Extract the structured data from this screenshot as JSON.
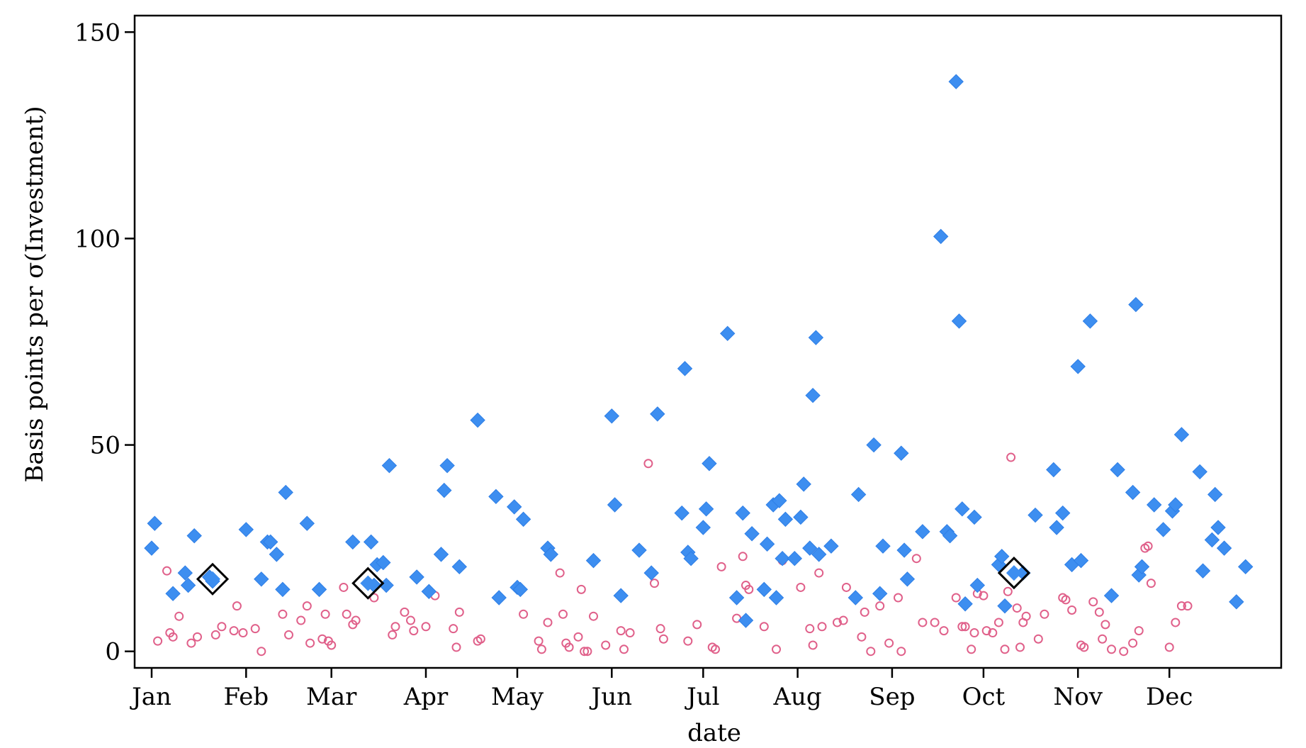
{
  "chart_data": {
    "type": "scatter",
    "title": "",
    "xlabel": "date",
    "ylabel": "Basis points per σ(Investment)",
    "x_ticks": [
      "Jan",
      "Feb",
      "Mar",
      "Apr",
      "May",
      "Jun",
      "Jul",
      "Aug",
      "Sep",
      "Oct",
      "Nov",
      "Dec"
    ],
    "y_ticks": [
      0,
      50,
      100,
      150
    ],
    "ylim": [
      -4,
      154
    ],
    "grid": false,
    "legend": "none",
    "series": [
      {
        "marker": "diamond",
        "color": "#3d8ef0",
        "points": [
          [
            "01-01",
            25
          ],
          [
            "01-02",
            31
          ],
          [
            "01-08",
            14
          ],
          [
            "01-12",
            19
          ],
          [
            "01-13",
            16
          ],
          [
            "01-15",
            28
          ],
          [
            "01-20",
            18
          ],
          [
            "01-21",
            17
          ],
          [
            "02-01",
            29.5
          ],
          [
            "02-06",
            17.5
          ],
          [
            "02-08",
            26.5
          ],
          [
            "02-09",
            26.5
          ],
          [
            "02-11",
            23.5
          ],
          [
            "02-13",
            15
          ],
          [
            "02-14",
            38.5
          ],
          [
            "02-21",
            31
          ],
          [
            "02-25",
            15
          ],
          [
            "03-08",
            26.5
          ],
          [
            "03-14",
            26.5
          ],
          [
            "03-15",
            16
          ],
          [
            "03-16",
            21
          ],
          [
            "03-18",
            21.5
          ],
          [
            "03-19",
            16
          ],
          [
            "03-20",
            45
          ],
          [
            "03-29",
            18
          ],
          [
            "04-02",
            14.5
          ],
          [
            "04-06",
            23.5
          ],
          [
            "04-07",
            39
          ],
          [
            "04-08",
            45
          ],
          [
            "04-12",
            20.5
          ],
          [
            "04-18",
            56
          ],
          [
            "04-24",
            37.5
          ],
          [
            "04-25",
            13
          ],
          [
            "04-30",
            35
          ],
          [
            "05-01",
            15.5
          ],
          [
            "05-02",
            15
          ],
          [
            "05-03",
            32
          ],
          [
            "05-11",
            25
          ],
          [
            "05-12",
            23.5
          ],
          [
            "05-26",
            22
          ],
          [
            "06-01",
            57
          ],
          [
            "06-02",
            35.5
          ],
          [
            "06-04",
            13.5
          ],
          [
            "06-10",
            24.5
          ],
          [
            "06-14",
            19
          ],
          [
            "06-16",
            57.5
          ],
          [
            "06-24",
            33.5
          ],
          [
            "06-25",
            68.5
          ],
          [
            "06-26",
            24
          ],
          [
            "06-27",
            22.5
          ],
          [
            "07-01",
            30
          ],
          [
            "07-02",
            34.5
          ],
          [
            "07-03",
            45.5
          ],
          [
            "07-09",
            77
          ],
          [
            "07-12",
            13
          ],
          [
            "07-14",
            33.5
          ],
          [
            "07-15",
            7.5
          ],
          [
            "07-17",
            28.5
          ],
          [
            "07-21",
            15
          ],
          [
            "07-22",
            26
          ],
          [
            "07-24",
            35.5
          ],
          [
            "07-25",
            13
          ],
          [
            "07-26",
            36.5
          ],
          [
            "07-27",
            22.5
          ],
          [
            "07-28",
            32
          ],
          [
            "07-31",
            22.5
          ],
          [
            "08-02",
            32.5
          ],
          [
            "08-03",
            40.5
          ],
          [
            "08-05",
            25
          ],
          [
            "08-06",
            62
          ],
          [
            "08-07",
            76
          ],
          [
            "08-08",
            23.5
          ],
          [
            "08-12",
            25.5
          ],
          [
            "08-20",
            13
          ],
          [
            "08-21",
            38
          ],
          [
            "08-26",
            50
          ],
          [
            "08-28",
            14
          ],
          [
            "08-29",
            25.5
          ],
          [
            "09-04",
            48
          ],
          [
            "09-05",
            24.5
          ],
          [
            "09-06",
            17.5
          ],
          [
            "09-11",
            29
          ],
          [
            "09-17",
            100.5
          ],
          [
            "09-19",
            29
          ],
          [
            "09-20",
            28
          ],
          [
            "09-22",
            138
          ],
          [
            "09-23",
            80
          ],
          [
            "09-24",
            34.5
          ],
          [
            "09-25",
            11.5
          ],
          [
            "09-28",
            32.5
          ],
          [
            "09-29",
            16
          ],
          [
            "10-06",
            21
          ],
          [
            "10-07",
            23
          ],
          [
            "10-08",
            11
          ],
          [
            "10-14",
            19
          ],
          [
            "10-18",
            33
          ],
          [
            "10-24",
            44
          ],
          [
            "10-25",
            30
          ],
          [
            "10-27",
            33.5
          ],
          [
            "10-30",
            21
          ],
          [
            "11-01",
            69
          ],
          [
            "11-02",
            22
          ],
          [
            "11-05",
            80
          ],
          [
            "11-12",
            13.5
          ],
          [
            "11-14",
            44
          ],
          [
            "11-19",
            38.5
          ],
          [
            "11-20",
            84
          ],
          [
            "11-21",
            18.5
          ],
          [
            "11-22",
            20.5
          ],
          [
            "11-26",
            35.5
          ],
          [
            "11-29",
            29.5
          ],
          [
            "12-02",
            34
          ],
          [
            "12-03",
            35.5
          ],
          [
            "12-05",
            52.5
          ],
          [
            "12-11",
            43.5
          ],
          [
            "12-12",
            19.5
          ],
          [
            "12-15",
            27
          ],
          [
            "12-16",
            38
          ],
          [
            "12-17",
            30
          ],
          [
            "12-19",
            25
          ],
          [
            "12-23",
            12
          ],
          [
            "12-26",
            20.5
          ]
        ]
      },
      {
        "marker": "open circle",
        "color": "#e0608a",
        "points": [
          [
            "01-03",
            2.5
          ],
          [
            "01-06",
            19.5
          ],
          [
            "01-07",
            4.5
          ],
          [
            "01-08",
            3.5
          ],
          [
            "01-10",
            8.5
          ],
          [
            "01-14",
            2
          ],
          [
            "01-16",
            3.5
          ],
          [
            "01-22",
            4
          ],
          [
            "01-24",
            6
          ],
          [
            "01-28",
            5
          ],
          [
            "01-29",
            11
          ],
          [
            "01-31",
            4.5
          ],
          [
            "02-04",
            5.5
          ],
          [
            "02-06",
            0
          ],
          [
            "02-13",
            9
          ],
          [
            "02-15",
            4
          ],
          [
            "02-19",
            7.5
          ],
          [
            "02-21",
            11
          ],
          [
            "02-22",
            2
          ],
          [
            "02-26",
            3
          ],
          [
            "02-27",
            9
          ],
          [
            "02-28",
            2.5
          ],
          [
            "03-01",
            1.5
          ],
          [
            "03-05",
            15.5
          ],
          [
            "03-06",
            9
          ],
          [
            "03-08",
            6.5
          ],
          [
            "03-09",
            7.5
          ],
          [
            "03-15",
            13
          ],
          [
            "03-21",
            4
          ],
          [
            "03-22",
            6
          ],
          [
            "03-25",
            9.5
          ],
          [
            "03-27",
            7.5
          ],
          [
            "03-28",
            5
          ],
          [
            "04-01",
            6
          ],
          [
            "04-04",
            13.5
          ],
          [
            "04-10",
            5.5
          ],
          [
            "04-11",
            1
          ],
          [
            "04-12",
            9.5
          ],
          [
            "04-18",
            2.5
          ],
          [
            "04-19",
            3
          ],
          [
            "05-03",
            9
          ],
          [
            "05-08",
            2.5
          ],
          [
            "05-09",
            0.5
          ],
          [
            "05-11",
            7
          ],
          [
            "05-15",
            19
          ],
          [
            "05-16",
            9
          ],
          [
            "05-17",
            2
          ],
          [
            "05-18",
            1
          ],
          [
            "05-21",
            3.5
          ],
          [
            "05-22",
            15
          ],
          [
            "05-23",
            0
          ],
          [
            "05-24",
            0
          ],
          [
            "05-26",
            8.5
          ],
          [
            "05-30",
            1.5
          ],
          [
            "06-04",
            5
          ],
          [
            "06-05",
            0.5
          ],
          [
            "06-07",
            4.5
          ],
          [
            "06-13",
            45.5
          ],
          [
            "06-15",
            16.5
          ],
          [
            "06-17",
            5.5
          ],
          [
            "06-18",
            3
          ],
          [
            "06-26",
            2.5
          ],
          [
            "06-29",
            6.5
          ],
          [
            "07-04",
            1
          ],
          [
            "07-05",
            0.5
          ],
          [
            "07-07",
            20.5
          ],
          [
            "07-12",
            8
          ],
          [
            "07-14",
            23
          ],
          [
            "07-15",
            16
          ],
          [
            "07-16",
            15
          ],
          [
            "07-21",
            6
          ],
          [
            "07-25",
            0.5
          ],
          [
            "07-27",
            22
          ],
          [
            "08-02",
            15.5
          ],
          [
            "08-05",
            5.5
          ],
          [
            "08-06",
            1.5
          ],
          [
            "08-08",
            19
          ],
          [
            "08-09",
            6
          ],
          [
            "08-14",
            7
          ],
          [
            "08-16",
            7.5
          ],
          [
            "08-17",
            15.5
          ],
          [
            "08-22",
            3.5
          ],
          [
            "08-23",
            9.5
          ],
          [
            "08-25",
            0
          ],
          [
            "08-28",
            11
          ],
          [
            "08-31",
            2
          ],
          [
            "09-03",
            13
          ],
          [
            "09-04",
            0
          ],
          [
            "09-09",
            22.5
          ],
          [
            "09-11",
            7
          ],
          [
            "09-15",
            7
          ],
          [
            "09-18",
            5
          ],
          [
            "09-22",
            13
          ],
          [
            "09-24",
            6
          ],
          [
            "09-25",
            6
          ],
          [
            "09-27",
            0.5
          ],
          [
            "09-28",
            4.5
          ],
          [
            "09-29",
            14
          ],
          [
            "10-01",
            13.5
          ],
          [
            "10-02",
            5
          ],
          [
            "10-04",
            4.5
          ],
          [
            "10-06",
            7
          ],
          [
            "10-08",
            0.5
          ],
          [
            "10-09",
            14.5
          ],
          [
            "10-10",
            47
          ],
          [
            "10-12",
            10.5
          ],
          [
            "10-13",
            1
          ],
          [
            "10-14",
            7
          ],
          [
            "10-15",
            8.5
          ],
          [
            "10-19",
            3
          ],
          [
            "10-21",
            9
          ],
          [
            "10-27",
            13
          ],
          [
            "10-28",
            12.5
          ],
          [
            "10-30",
            10
          ],
          [
            "11-02",
            1.5
          ],
          [
            "11-03",
            1
          ],
          [
            "11-06",
            12
          ],
          [
            "11-08",
            9.5
          ],
          [
            "11-09",
            3
          ],
          [
            "11-10",
            6.5
          ],
          [
            "11-12",
            0.5
          ],
          [
            "11-16",
            0
          ],
          [
            "11-19",
            2
          ],
          [
            "11-21",
            5
          ],
          [
            "11-23",
            25
          ],
          [
            "11-24",
            25.5
          ],
          [
            "11-25",
            16.5
          ],
          [
            "12-01",
            1
          ],
          [
            "12-03",
            7
          ],
          [
            "12-05",
            11
          ],
          [
            "12-07",
            11
          ]
        ]
      },
      {
        "marker": "open diamond highlight",
        "color": "#000000",
        "points": [
          [
            "01-21",
            17.5
          ],
          [
            "03-13",
            16.5
          ],
          [
            "10-11",
            19
          ]
        ]
      }
    ]
  }
}
